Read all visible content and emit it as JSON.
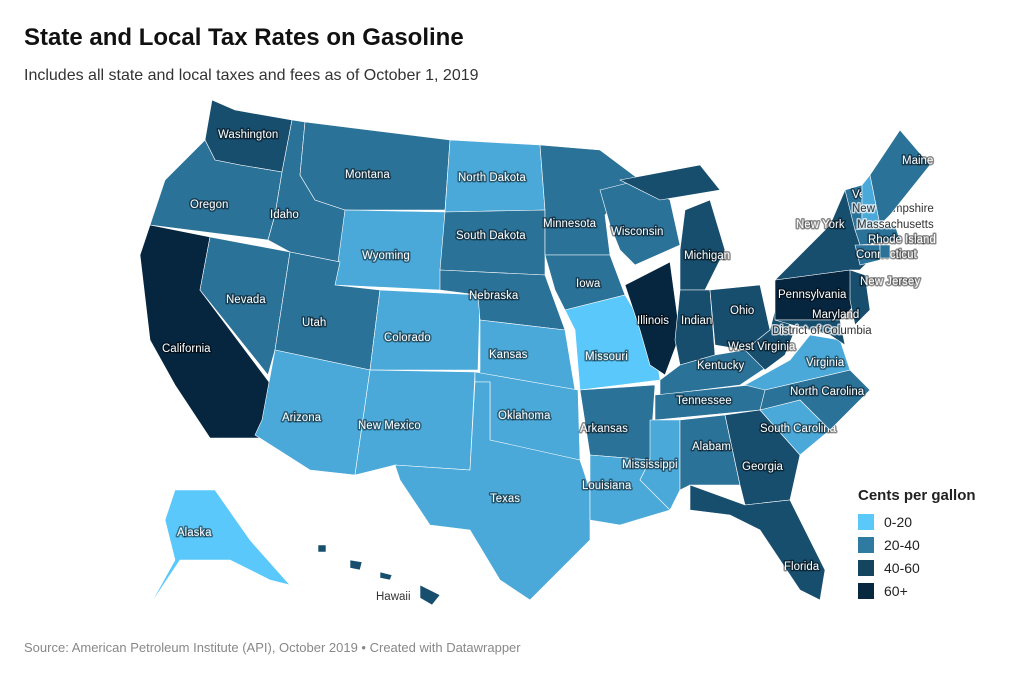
{
  "title": "State and Local Tax Rates on Gasoline",
  "subtitle": "Includes all state and local taxes and fees as of October 1, 2019",
  "footer": "Source: American Petroleum Institute (API), October 2019 • Created with Datawrapper",
  "legend": {
    "title": "Cents per gallon",
    "items": [
      {
        "label": "0-20",
        "color": "#5ac8f8"
      },
      {
        "label": "20-40",
        "color": "#2e7aa0"
      },
      {
        "label": "40-60",
        "color": "#15445f"
      },
      {
        "label": "60+",
        "color": "#082840"
      }
    ]
  },
  "state_colors": {
    "light": "#4aa9d9",
    "alaska": "#5ac8fa",
    "mid": "#2b7299",
    "dark": "#174e6e",
    "darkest": "#062640"
  },
  "states": [
    {
      "name": "Washington",
      "shade": "dark"
    },
    {
      "name": "Oregon",
      "shade": "mid"
    },
    {
      "name": "California",
      "shade": "darkest"
    },
    {
      "name": "Nevada",
      "shade": "mid"
    },
    {
      "name": "Idaho",
      "shade": "mid"
    },
    {
      "name": "Montana",
      "shade": "mid"
    },
    {
      "name": "Wyoming",
      "shade": "light"
    },
    {
      "name": "Utah",
      "shade": "mid"
    },
    {
      "name": "Colorado",
      "shade": "light"
    },
    {
      "name": "Arizona",
      "shade": "light"
    },
    {
      "name": "New Mexico",
      "shade": "light"
    },
    {
      "name": "North Dakota",
      "shade": "light"
    },
    {
      "name": "South Dakota",
      "shade": "mid"
    },
    {
      "name": "Nebraska",
      "shade": "mid"
    },
    {
      "name": "Kansas",
      "shade": "light"
    },
    {
      "name": "Oklahoma",
      "shade": "light"
    },
    {
      "name": "Texas",
      "shade": "light"
    },
    {
      "name": "Minnesota",
      "shade": "mid"
    },
    {
      "name": "Iowa",
      "shade": "mid"
    },
    {
      "name": "Missouri",
      "shade": "alaska"
    },
    {
      "name": "Arkansas",
      "shade": "mid"
    },
    {
      "name": "Louisiana",
      "shade": "light"
    },
    {
      "name": "Wisconsin",
      "shade": "mid"
    },
    {
      "name": "Illinois",
      "shade": "darkest"
    },
    {
      "name": "Michigan",
      "shade": "dark"
    },
    {
      "name": "Indiana",
      "shade": "dark"
    },
    {
      "name": "Ohio",
      "shade": "dark"
    },
    {
      "name": "Kentucky",
      "shade": "mid"
    },
    {
      "name": "Tennessee",
      "shade": "mid"
    },
    {
      "name": "Mississippi",
      "shade": "light"
    },
    {
      "name": "Alabama",
      "shade": "mid"
    },
    {
      "name": "Georgia",
      "shade": "dark"
    },
    {
      "name": "Florida",
      "shade": "dark"
    },
    {
      "name": "South Carolina",
      "shade": "light"
    },
    {
      "name": "North Carolina",
      "shade": "mid"
    },
    {
      "name": "Virginia",
      "shade": "light"
    },
    {
      "name": "West Virginia",
      "shade": "dark"
    },
    {
      "name": "Pennsylvania",
      "shade": "darkest"
    },
    {
      "name": "New York",
      "shade": "dark"
    },
    {
      "name": "New Jersey",
      "shade": "dark"
    },
    {
      "name": "Maryland",
      "shade": "dark"
    },
    {
      "name": "District of Columbia",
      "shade": "dark"
    },
    {
      "name": "Vermont",
      "shade": "mid"
    },
    {
      "name": "New Hampshire",
      "shade": "light"
    },
    {
      "name": "Maine",
      "shade": "mid"
    },
    {
      "name": "Massachusetts",
      "shade": "mid"
    },
    {
      "name": "Connecticut",
      "shade": "mid"
    },
    {
      "name": "Rhode Island",
      "shade": "mid"
    },
    {
      "name": "Alaska",
      "shade": "alaska"
    },
    {
      "name": "Hawaii",
      "shade": "dark"
    }
  ]
}
